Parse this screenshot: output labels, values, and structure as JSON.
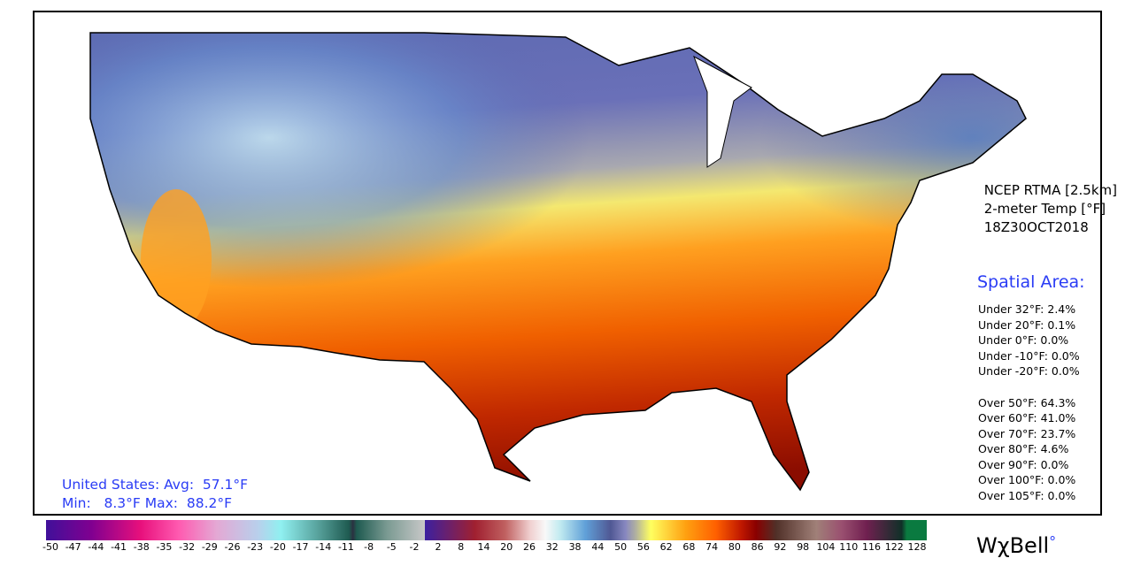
{
  "header": {
    "source": "NCEP RTMA [2.5km]",
    "variable": "2-meter Temp [°F]",
    "valid_time": "18Z30OCT2018"
  },
  "spatial_area": {
    "title": "Spatial Area:",
    "under": [
      "Under 32°F: 2.4%",
      "Under 20°F: 0.1%",
      "Under 0°F: 0.0%",
      "Under -10°F: 0.0%",
      "Under -20°F: 0.0%"
    ],
    "over": [
      "Over 50°F: 64.3%",
      "Over 60°F: 41.0%",
      "Over 70°F: 23.7%",
      "Over 80°F: 4.6%",
      "Over 90°F: 0.0%",
      "Over 100°F: 0.0%",
      "Over 105°F: 0.0%"
    ]
  },
  "summary": {
    "line1": "United States: Avg:  57.1°F",
    "line2": "Min:   8.3°F Max:  88.2°F"
  },
  "colorbar": {
    "negative_ticks": [
      "-50",
      "-47",
      "-44",
      "-41",
      "-38",
      "-35",
      "-32",
      "-29",
      "-26",
      "-23",
      "-20",
      "-17",
      "-14",
      "-11",
      "-8",
      "-5",
      "-2"
    ],
    "positive_ticks": [
      "2",
      "8",
      "14",
      "20",
      "26",
      "32",
      "38",
      "44",
      "50",
      "56",
      "62",
      "68",
      "74",
      "80",
      "86",
      "92",
      "98",
      "104",
      "110",
      "116",
      "122",
      "128"
    ]
  },
  "logo": {
    "text": "WχBell",
    "mark": "°"
  }
}
